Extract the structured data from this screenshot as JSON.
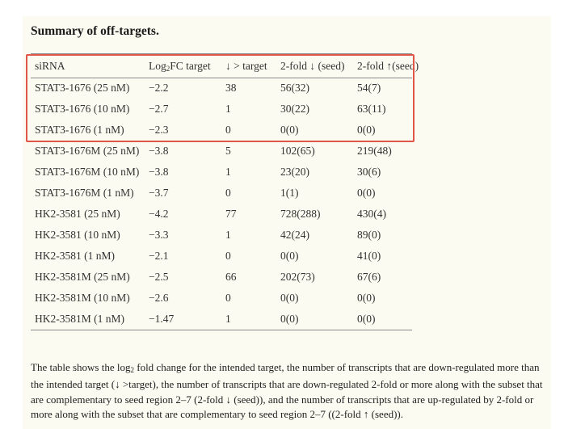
{
  "title": "Summary of off-targets.",
  "table": {
    "headers": {
      "sirna": "siRNA",
      "log_prefix": "Log",
      "log_sub": "2",
      "log_suffix": "FC target",
      "down_target": "↓ > target",
      "fold_down": "2-fold ↓ (seed)",
      "fold_up": "2-fold ↑(seed)"
    },
    "rows": [
      [
        "STAT3-1676 (25 nM)",
        "−2.2",
        "38",
        "56(32)",
        "54(7)"
      ],
      [
        "STAT3-1676 (10 nM)",
        "−2.7",
        "1",
        "30(22)",
        "63(11)"
      ],
      [
        "STAT3-1676 (1 nM)",
        "−2.3",
        "0",
        "0(0)",
        "0(0)"
      ],
      [
        "STAT3-1676M (25 nM)",
        "−3.8",
        "5",
        "102(65)",
        "219(48)"
      ],
      [
        "STAT3-1676M (10 nM)",
        "−3.8",
        "1",
        "23(20)",
        "30(6)"
      ],
      [
        "STAT3-1676M (1 nM)",
        "−3.7",
        "0",
        "1(1)",
        "0(0)"
      ],
      [
        "HK2-3581 (25 nM)",
        "−4.2",
        "77",
        "728(288)",
        "430(4)"
      ],
      [
        "HK2-3581 (10 nM)",
        "−3.3",
        "1",
        "42(24)",
        "89(0)"
      ],
      [
        "HK2-3581 (1 nM)",
        "−2.1",
        "0",
        "0(0)",
        "41(0)"
      ],
      [
        "HK2-3581M (25 nM)",
        "−2.5",
        "66",
        "202(73)",
        "67(6)"
      ],
      [
        "HK2-3581M (10 nM)",
        "−2.6",
        "0",
        "0(0)",
        "0(0)"
      ],
      [
        "HK2-3581M (1 nM)",
        "−1.47",
        "1",
        "0(0)",
        "0(0)"
      ]
    ]
  },
  "caption": {
    "part1": "The table shows the log",
    "sub": "2",
    "part2": " fold change for the intended target, the number of transcripts that are down-regulated more than the intended target (↓ >target), the number of transcripts that are down-regulated 2-fold or more along with the subset that are complementary to seed region 2–7 (2-fold ↓ (seed)), and the number of transcripts that are up-regulated by 2-fold or more along with the subset that are complementary to seed region 2–7 ((2-fold ↑ (seed))."
  },
  "colors": {
    "highlight_border": "#e0574a",
    "panel_background": "#fcfbf1"
  }
}
